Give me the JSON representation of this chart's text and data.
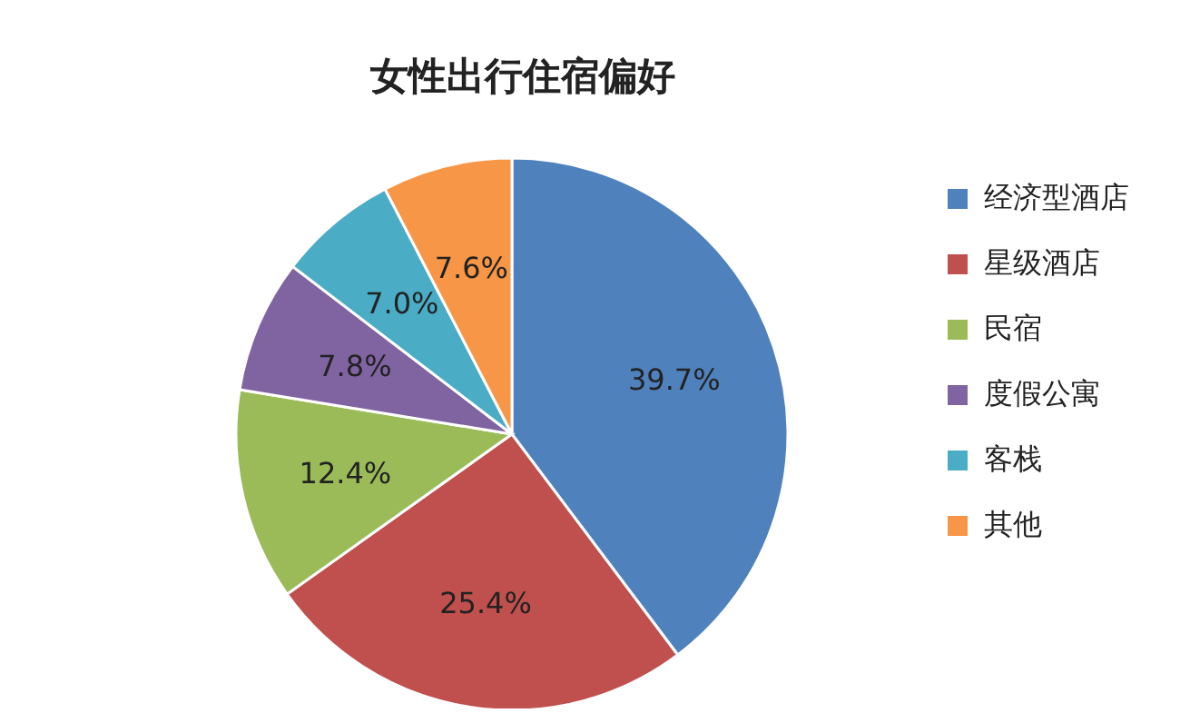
{
  "chart_data": {
    "type": "pie",
    "title": "女性出行住宿偏好",
    "categories": [
      "经济型酒店",
      "星级酒店",
      "民宿",
      "度假公寓",
      "客栈",
      "其他"
    ],
    "values": [
      39.7,
      25.4,
      12.4,
      7.8,
      7.0,
      7.6
    ],
    "colors": [
      "#4f81bd",
      "#c0504d",
      "#9bbb59",
      "#8064a2",
      "#4bacc6",
      "#f79646"
    ],
    "value_labels": [
      "39.7%",
      "25.4%",
      "12.4%",
      "7.8%",
      "7.0%",
      "7.6%"
    ],
    "legend": "right"
  }
}
